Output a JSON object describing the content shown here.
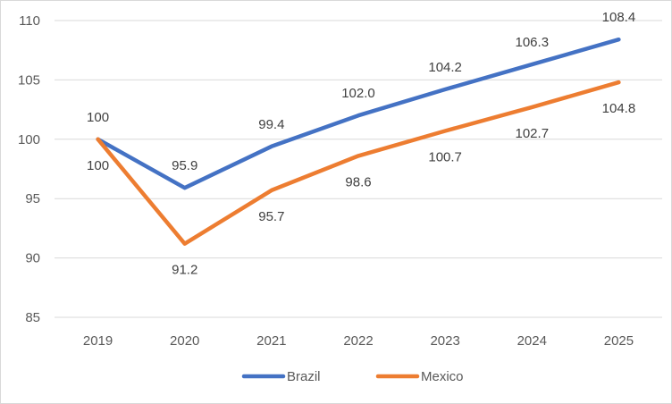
{
  "chart_data": {
    "type": "line",
    "title": "",
    "xlabel": "",
    "ylabel": "",
    "categories": [
      "2019",
      "2020",
      "2021",
      "2022",
      "2023",
      "2024",
      "2025"
    ],
    "ylim": [
      85,
      110
    ],
    "yticks": [
      85,
      90,
      95,
      100,
      105,
      110
    ],
    "grid": true,
    "legend_position": "bottom",
    "series": [
      {
        "name": "Brazil",
        "color": "#4472c4",
        "values": [
          100,
          95.9,
          99.4,
          102.0,
          104.2,
          106.3,
          108.4
        ],
        "labels": [
          "100",
          "95.9",
          "99.4",
          "102.0",
          "104.2",
          "106.3",
          "108.4"
        ],
        "label_placement": "above"
      },
      {
        "name": "Mexico",
        "color": "#ed7d31",
        "values": [
          100,
          91.2,
          95.7,
          98.6,
          100.7,
          102.7,
          104.8
        ],
        "labels": [
          "100",
          "91.2",
          "95.7",
          "98.6",
          "100.7",
          "102.7",
          "104.8"
        ],
        "label_placement": "below"
      }
    ]
  }
}
